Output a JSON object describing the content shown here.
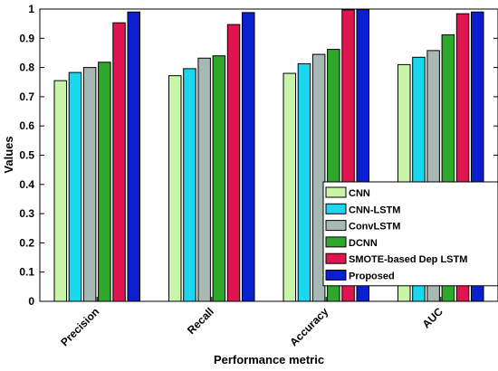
{
  "chart_data": {
    "type": "bar",
    "categories": [
      "Precision",
      "Recall",
      "Accuracy",
      "AUC"
    ],
    "series": [
      {
        "name": "CNN",
        "color": "#c8f5a8",
        "values": [
          0.755,
          0.772,
          0.78,
          0.81
        ]
      },
      {
        "name": "CNN-LSTM",
        "color": "#1ad6ee",
        "values": [
          0.783,
          0.796,
          0.813,
          0.835
        ]
      },
      {
        "name": "ConvLSTM",
        "color": "#a8b8b4",
        "values": [
          0.8,
          0.832,
          0.845,
          0.858
        ]
      },
      {
        "name": "DCNN",
        "color": "#2ea82a",
        "values": [
          0.818,
          0.84,
          0.862,
          0.912
        ]
      },
      {
        "name": "SMOTE-based Dep LSTM",
        "color": "#e0144e",
        "values": [
          0.953,
          0.947,
          0.997,
          0.984
        ]
      },
      {
        "name": "Proposed",
        "color": "#0a1fd0",
        "values": [
          0.99,
          0.988,
          0.998,
          0.99
        ]
      }
    ],
    "xlabel": "Performance metric",
    "ylabel": "Values",
    "ylim": [
      0,
      1
    ],
    "yticks": [
      "0",
      "0.1",
      "0.2",
      "0.3",
      "0.4",
      "0.5",
      "0.6",
      "0.7",
      "0.8",
      "0.9",
      "1"
    ],
    "grid": false,
    "legend_position": "bottom-right"
  }
}
